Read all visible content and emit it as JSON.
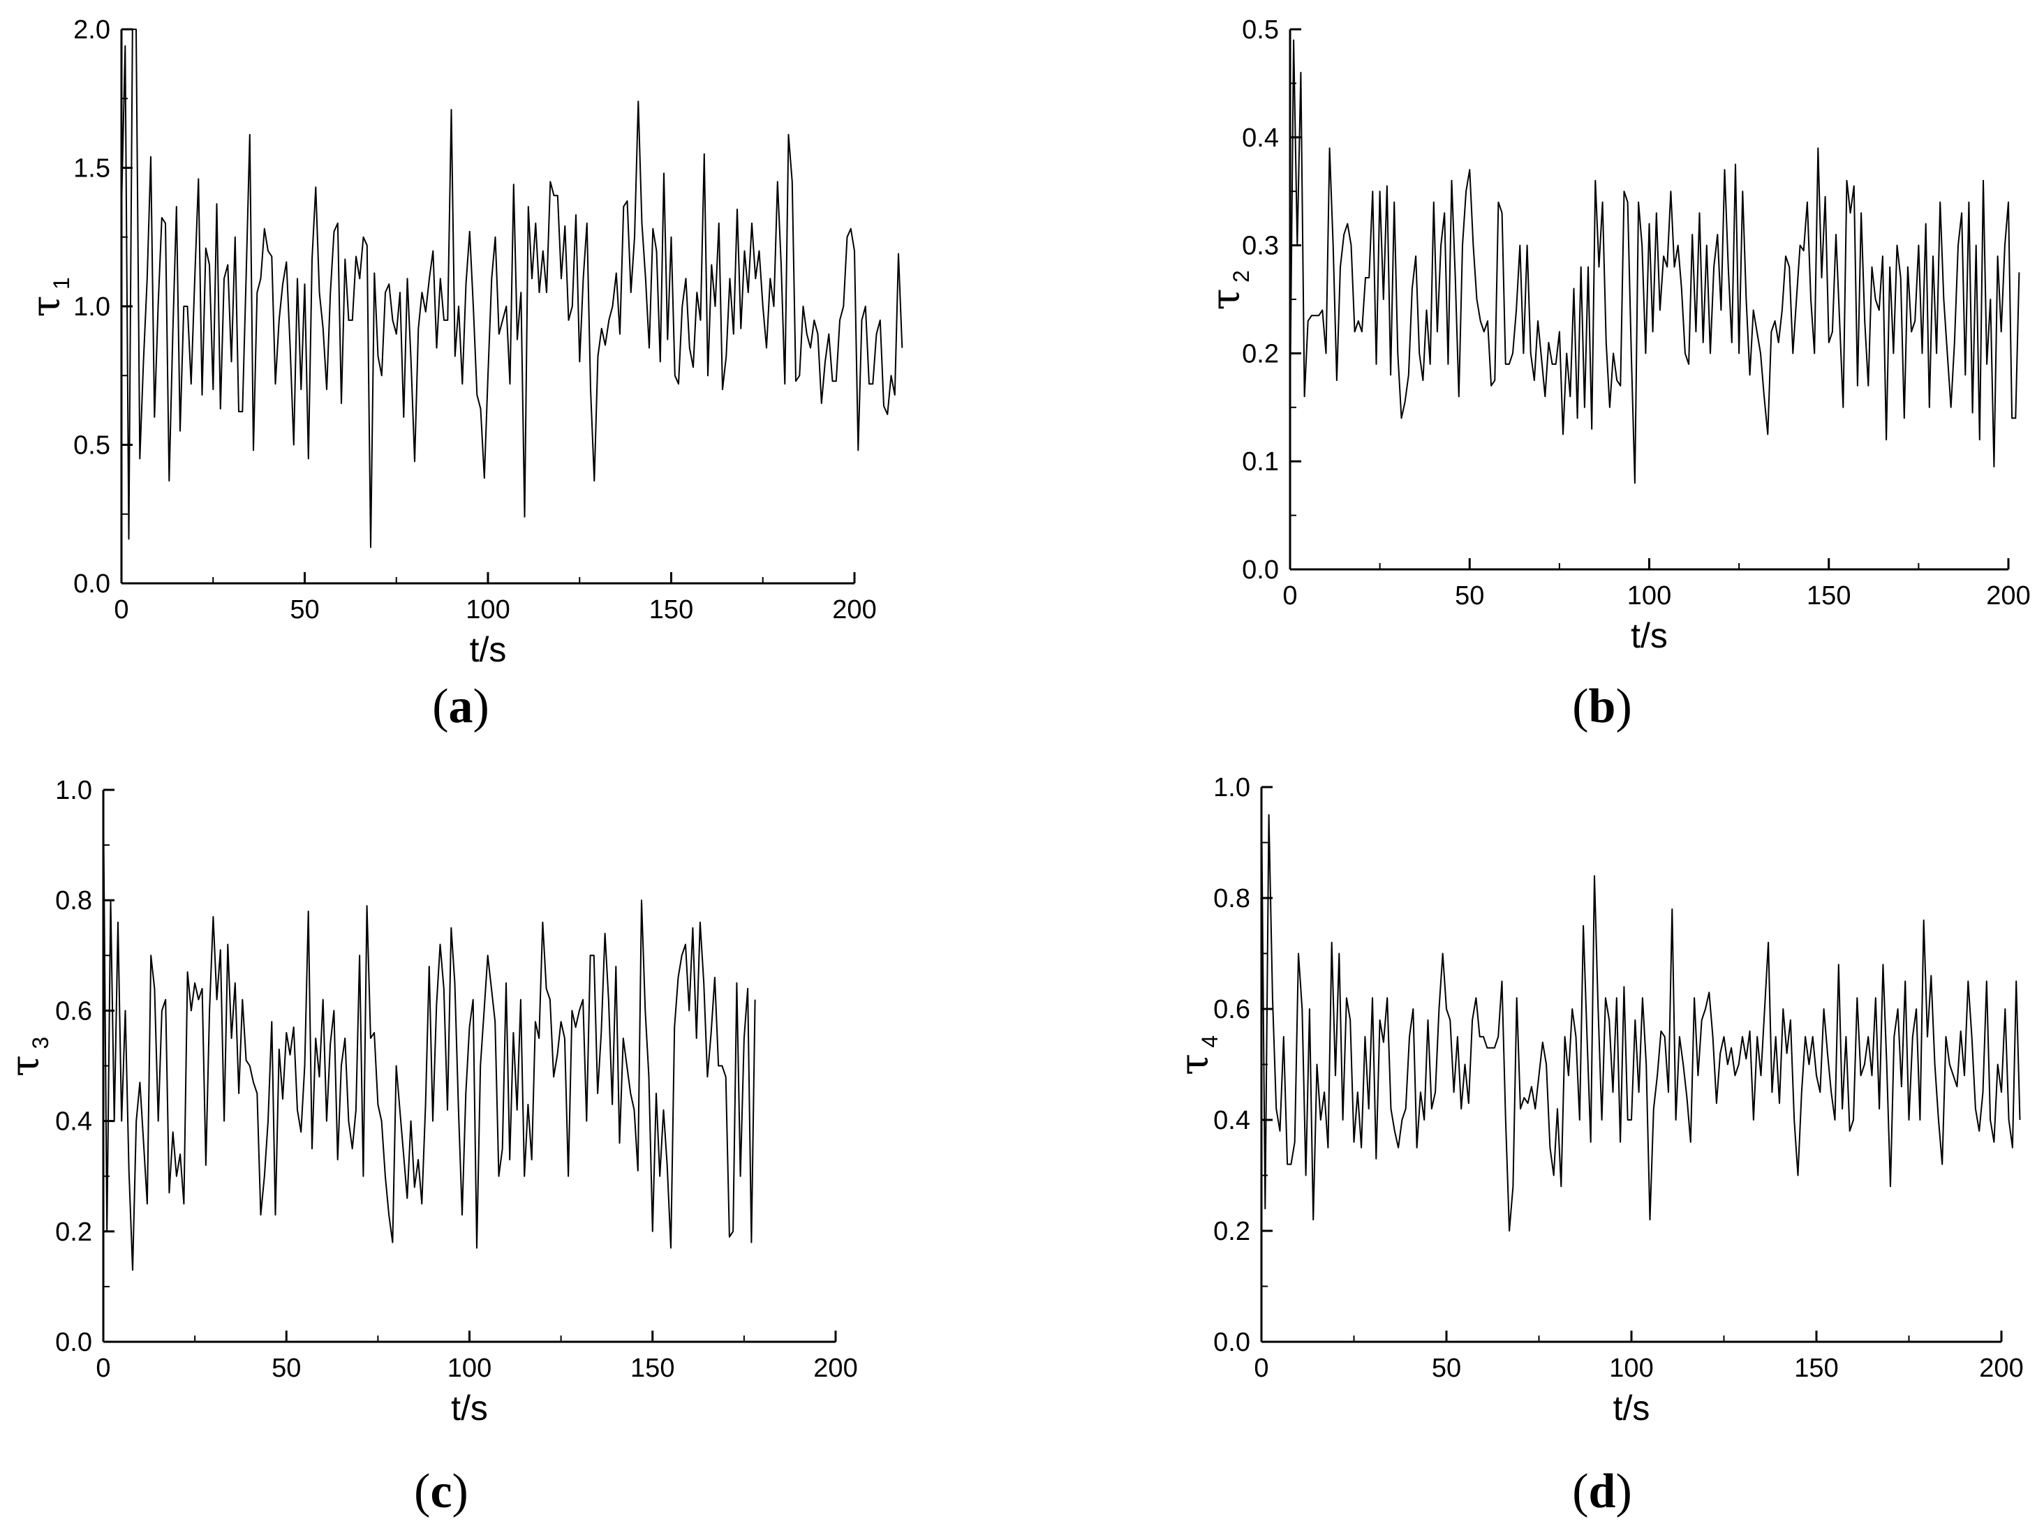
{
  "chart_data": [
    {
      "type": "line",
      "panel_label": "(a)",
      "panel_letter": "a",
      "xlabel": "t/s",
      "ylabel_symbol": "τ",
      "ylabel_sub": "1",
      "xlim": [
        0,
        200
      ],
      "ylim": [
        0,
        2.0
      ],
      "xticks": [
        "0",
        "50",
        "100",
        "150",
        "200"
      ],
      "yticks": [
        "0.0",
        "0.5",
        "1.0",
        "1.5",
        "2.0"
      ],
      "x_step": 1,
      "y": [
        1.35,
        1.94,
        0.16,
        2.0,
        2.0,
        0.45,
        0.8,
        1.1,
        1.54,
        0.6,
        1.0,
        1.32,
        1.3,
        0.37,
        0.9,
        1.36,
        0.55,
        1.0,
        1.0,
        0.72,
        1.1,
        1.46,
        0.68,
        1.21,
        1.15,
        0.7,
        1.37,
        0.63,
        1.1,
        1.15,
        0.8,
        1.25,
        0.62,
        0.62,
        1.1,
        1.62,
        0.48,
        1.05,
        1.1,
        1.28,
        1.2,
        1.18,
        0.72,
        0.95,
        1.08,
        1.16,
        0.86,
        0.5,
        1.1,
        0.7,
        1.08,
        0.45,
        1.17,
        1.43,
        1.05,
        0.92,
        0.7,
        1.05,
        1.27,
        1.3,
        0.65,
        1.17,
        0.95,
        0.95,
        1.18,
        1.1,
        1.25,
        1.22,
        0.13,
        1.12,
        0.82,
        0.75,
        1.05,
        1.08,
        0.95,
        0.9,
        1.05,
        0.6,
        1.1,
        0.8,
        0.44,
        0.92,
        1.05,
        0.98,
        1.1,
        1.2,
        0.85,
        1.1,
        0.95,
        0.95,
        1.71,
        0.82,
        1.0,
        0.72,
        1.08,
        1.27,
        1.0,
        0.68,
        0.63,
        0.38,
        0.75,
        1.1,
        1.25,
        0.9,
        0.95,
        1.0,
        0.72,
        1.44,
        0.88,
        1.05,
        0.24,
        1.36,
        1.1,
        1.3,
        1.05,
        1.2,
        1.05,
        1.45,
        1.4,
        1.4,
        1.1,
        1.29,
        0.95,
        1.0,
        1.33,
        0.8,
        1.1,
        1.3,
        0.7,
        0.37,
        0.82,
        0.92,
        0.86,
        0.95,
        1.0,
        1.12,
        0.9,
        1.36,
        1.38,
        1.05,
        1.25,
        1.74,
        1.3,
        1.1,
        0.85,
        1.28,
        1.2,
        0.8,
        1.48,
        0.88,
        1.25,
        0.75,
        0.72,
        1.0,
        1.1,
        0.85,
        0.78,
        1.05,
        0.95,
        1.55,
        0.75,
        1.15,
        1.0,
        1.3,
        0.7,
        0.82,
        1.1,
        0.9,
        1.35,
        0.92,
        1.2,
        1.05,
        1.3,
        1.1,
        1.2,
        1.0,
        0.85,
        1.1,
        1.0,
        1.45,
        1.15,
        0.72,
        1.62,
        1.45,
        0.73,
        0.75,
        1.0,
        0.9,
        0.85,
        0.95,
        0.9,
        0.65,
        0.8,
        0.9,
        0.73,
        0.73,
        0.95,
        1.0,
        1.25,
        1.28,
        1.2,
        0.48,
        0.95,
        1.0,
        0.72,
        0.72,
        0.9,
        0.95,
        0.64,
        0.61,
        0.75,
        0.68,
        1.19,
        0.85
      ]
    },
    {
      "type": "line",
      "panel_label": "(b)",
      "panel_letter": "b",
      "xlabel": "t/s",
      "ylabel_symbol": "τ",
      "ylabel_sub": "2",
      "xlim": [
        0,
        200
      ],
      "ylim": [
        0,
        0.5
      ],
      "xticks": [
        "0",
        "50",
        "100",
        "150",
        "200"
      ],
      "yticks": [
        "0.0",
        "0.1",
        "0.2",
        "0.3",
        "0.4",
        "0.5"
      ],
      "x_step": 1,
      "y": [
        0.16,
        0.49,
        0.3,
        0.46,
        0.16,
        0.23,
        0.235,
        0.235,
        0.235,
        0.24,
        0.2,
        0.39,
        0.3,
        0.175,
        0.28,
        0.31,
        0.32,
        0.3,
        0.22,
        0.23,
        0.22,
        0.27,
        0.27,
        0.35,
        0.19,
        0.35,
        0.25,
        0.355,
        0.18,
        0.34,
        0.2,
        0.14,
        0.155,
        0.18,
        0.26,
        0.29,
        0.2,
        0.175,
        0.24,
        0.19,
        0.34,
        0.22,
        0.3,
        0.33,
        0.19,
        0.36,
        0.27,
        0.16,
        0.3,
        0.35,
        0.37,
        0.3,
        0.25,
        0.23,
        0.22,
        0.23,
        0.17,
        0.175,
        0.34,
        0.33,
        0.19,
        0.19,
        0.2,
        0.24,
        0.3,
        0.2,
        0.3,
        0.2,
        0.175,
        0.23,
        0.195,
        0.16,
        0.21,
        0.19,
        0.19,
        0.22,
        0.125,
        0.2,
        0.16,
        0.26,
        0.14,
        0.28,
        0.15,
        0.28,
        0.13,
        0.36,
        0.28,
        0.34,
        0.21,
        0.15,
        0.2,
        0.175,
        0.17,
        0.35,
        0.34,
        0.2,
        0.08,
        0.34,
        0.3,
        0.2,
        0.32,
        0.22,
        0.33,
        0.24,
        0.29,
        0.28,
        0.35,
        0.28,
        0.3,
        0.26,
        0.2,
        0.19,
        0.31,
        0.22,
        0.33,
        0.21,
        0.3,
        0.2,
        0.28,
        0.31,
        0.24,
        0.37,
        0.28,
        0.21,
        0.375,
        0.2,
        0.35,
        0.25,
        0.18,
        0.24,
        0.22,
        0.2,
        0.16,
        0.125,
        0.22,
        0.23,
        0.21,
        0.24,
        0.29,
        0.28,
        0.2,
        0.25,
        0.3,
        0.295,
        0.34,
        0.25,
        0.2,
        0.39,
        0.27,
        0.345,
        0.21,
        0.22,
        0.31,
        0.23,
        0.15,
        0.36,
        0.33,
        0.355,
        0.17,
        0.33,
        0.23,
        0.17,
        0.28,
        0.25,
        0.24,
        0.29,
        0.12,
        0.28,
        0.2,
        0.3,
        0.27,
        0.14,
        0.28,
        0.22,
        0.23,
        0.3,
        0.2,
        0.32,
        0.15,
        0.29,
        0.2,
        0.34,
        0.25,
        0.2,
        0.15,
        0.21,
        0.3,
        0.33,
        0.18,
        0.34,
        0.145,
        0.3,
        0.12,
        0.36,
        0.19,
        0.25,
        0.095,
        0.29,
        0.22,
        0.3,
        0.34,
        0.14,
        0.14,
        0.275
      ]
    },
    {
      "type": "line",
      "panel_label": "(c)",
      "panel_letter": "c",
      "xlabel": "t/s",
      "ylabel_symbol": "τ",
      "ylabel_sub": "3",
      "xlim": [
        0,
        200
      ],
      "ylim": [
        0,
        1.0
      ],
      "xticks": [
        "0",
        "50",
        "100",
        "150",
        "200"
      ],
      "yticks": [
        "0.0",
        "0.2",
        "0.4",
        "0.6",
        "0.8",
        "1.0"
      ],
      "x_step": 1,
      "y": [
        0.99,
        0.2,
        0.8,
        0.4,
        0.76,
        0.4,
        0.6,
        0.31,
        0.13,
        0.4,
        0.47,
        0.36,
        0.25,
        0.7,
        0.64,
        0.4,
        0.6,
        0.62,
        0.27,
        0.38,
        0.3,
        0.34,
        0.25,
        0.67,
        0.6,
        0.65,
        0.62,
        0.64,
        0.32,
        0.6,
        0.77,
        0.62,
        0.71,
        0.4,
        0.72,
        0.55,
        0.65,
        0.45,
        0.62,
        0.51,
        0.5,
        0.47,
        0.45,
        0.23,
        0.3,
        0.4,
        0.58,
        0.23,
        0.53,
        0.44,
        0.56,
        0.52,
        0.57,
        0.42,
        0.38,
        0.5,
        0.78,
        0.35,
        0.55,
        0.48,
        0.62,
        0.4,
        0.54,
        0.6,
        0.33,
        0.5,
        0.55,
        0.4,
        0.35,
        0.42,
        0.7,
        0.3,
        0.79,
        0.55,
        0.56,
        0.43,
        0.4,
        0.3,
        0.23,
        0.18,
        0.5,
        0.42,
        0.34,
        0.26,
        0.4,
        0.28,
        0.33,
        0.25,
        0.43,
        0.68,
        0.4,
        0.61,
        0.72,
        0.64,
        0.42,
        0.75,
        0.65,
        0.42,
        0.23,
        0.45,
        0.57,
        0.62,
        0.17,
        0.5,
        0.6,
        0.7,
        0.64,
        0.58,
        0.3,
        0.35,
        0.65,
        0.33,
        0.56,
        0.42,
        0.62,
        0.3,
        0.43,
        0.33,
        0.58,
        0.55,
        0.76,
        0.64,
        0.62,
        0.48,
        0.52,
        0.58,
        0.55,
        0.3,
        0.6,
        0.57,
        0.6,
        0.62,
        0.4,
        0.7,
        0.7,
        0.45,
        0.56,
        0.74,
        0.62,
        0.43,
        0.68,
        0.36,
        0.55,
        0.5,
        0.45,
        0.42,
        0.31,
        0.8,
        0.6,
        0.48,
        0.2,
        0.45,
        0.3,
        0.42,
        0.32,
        0.17,
        0.57,
        0.66,
        0.7,
        0.72,
        0.6,
        0.75,
        0.55,
        0.76,
        0.65,
        0.48,
        0.56,
        0.66,
        0.5,
        0.5,
        0.48,
        0.19,
        0.2,
        0.65,
        0.3,
        0.55,
        0.64,
        0.18,
        0.62
      ]
    },
    {
      "type": "line",
      "panel_label": "(d)",
      "panel_letter": "d",
      "xlabel": "t/s",
      "ylabel_symbol": "τ",
      "ylabel_sub": "4",
      "xlim": [
        0,
        200
      ],
      "ylim": [
        0,
        1.0
      ],
      "xticks": [
        "0",
        "50",
        "100",
        "150",
        "200"
      ],
      "yticks": [
        "0.0",
        "0.2",
        "0.4",
        "0.6",
        "0.8",
        "1.0"
      ],
      "x_step": 1,
      "y": [
        0.98,
        0.24,
        0.95,
        0.62,
        0.42,
        0.38,
        0.55,
        0.32,
        0.32,
        0.36,
        0.7,
        0.6,
        0.3,
        0.6,
        0.22,
        0.5,
        0.4,
        0.45,
        0.35,
        0.72,
        0.48,
        0.7,
        0.4,
        0.62,
        0.58,
        0.36,
        0.45,
        0.35,
        0.55,
        0.42,
        0.62,
        0.33,
        0.58,
        0.54,
        0.62,
        0.42,
        0.38,
        0.35,
        0.4,
        0.42,
        0.55,
        0.6,
        0.35,
        0.45,
        0.4,
        0.58,
        0.42,
        0.45,
        0.6,
        0.7,
        0.6,
        0.58,
        0.45,
        0.55,
        0.42,
        0.5,
        0.43,
        0.58,
        0.62,
        0.55,
        0.55,
        0.53,
        0.53,
        0.53,
        0.55,
        0.65,
        0.4,
        0.2,
        0.28,
        0.62,
        0.42,
        0.44,
        0.43,
        0.46,
        0.42,
        0.48,
        0.54,
        0.5,
        0.35,
        0.3,
        0.42,
        0.28,
        0.55,
        0.48,
        0.6,
        0.55,
        0.4,
        0.75,
        0.55,
        0.36,
        0.84,
        0.6,
        0.4,
        0.62,
        0.58,
        0.45,
        0.62,
        0.36,
        0.64,
        0.4,
        0.4,
        0.58,
        0.45,
        0.62,
        0.5,
        0.22,
        0.42,
        0.48,
        0.56,
        0.55,
        0.45,
        0.78,
        0.4,
        0.55,
        0.5,
        0.44,
        0.36,
        0.62,
        0.48,
        0.58,
        0.6,
        0.63,
        0.55,
        0.43,
        0.52,
        0.55,
        0.5,
        0.53,
        0.48,
        0.5,
        0.55,
        0.51,
        0.56,
        0.4,
        0.55,
        0.48,
        0.6,
        0.72,
        0.45,
        0.55,
        0.43,
        0.6,
        0.52,
        0.58,
        0.4,
        0.3,
        0.45,
        0.55,
        0.5,
        0.55,
        0.48,
        0.45,
        0.6,
        0.52,
        0.45,
        0.4,
        0.68,
        0.42,
        0.55,
        0.38,
        0.4,
        0.62,
        0.48,
        0.5,
        0.55,
        0.48,
        0.62,
        0.42,
        0.68,
        0.5,
        0.28,
        0.55,
        0.6,
        0.46,
        0.65,
        0.4,
        0.55,
        0.6,
        0.4,
        0.76,
        0.55,
        0.66,
        0.5,
        0.4,
        0.32,
        0.55,
        0.5,
        0.48,
        0.46,
        0.56,
        0.48,
        0.65,
        0.55,
        0.42,
        0.38,
        0.45,
        0.65,
        0.4,
        0.36,
        0.5,
        0.45,
        0.6,
        0.4,
        0.35,
        0.65,
        0.4
      ]
    }
  ]
}
